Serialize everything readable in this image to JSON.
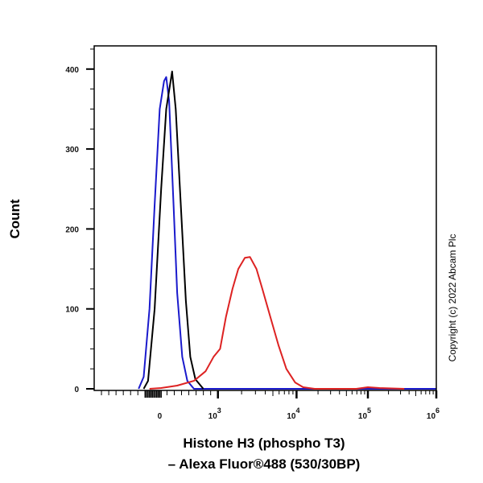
{
  "chart_data": {
    "type": "line",
    "title": "",
    "xlabel_line1": "Histone H3 (phospho T3)",
    "xlabel_line2": "– Alexa Fluor®488 (530/30BP)",
    "ylabel": "Count",
    "x_scale_note": "biexponential; x values given in display decades where 0→0, 10^3→0.8, 10^4→1.88, 10^5→2.86, 10^6→3.8",
    "xlim": [
      -0.9,
      3.8
    ],
    "ylim": [
      -2,
      429
    ],
    "yticks": [
      0,
      100,
      200,
      300,
      400
    ],
    "ytick_labels": [
      "0",
      "100",
      "200",
      "300",
      "400"
    ],
    "xticks": [
      {
        "pos": 0,
        "base": "0",
        "exp": ""
      },
      {
        "pos": 0.8,
        "base": "10",
        "exp": "3"
      },
      {
        "pos": 1.88,
        "base": "10",
        "exp": "4"
      },
      {
        "pos": 2.86,
        "base": "10",
        "exp": "5"
      },
      {
        "pos": 3.8,
        "base": "10",
        "exp": "6"
      }
    ],
    "grid": false,
    "series": [
      {
        "name": "blue",
        "color": "#1a1acc",
        "x": [
          -0.29,
          -0.22,
          -0.14,
          -0.07,
          0,
          0.06,
          0.09,
          0.13,
          0.19,
          0.24,
          0.31,
          0.38,
          0.47,
          3.8
        ],
        "y": [
          0,
          15,
          100,
          230,
          350,
          385,
          390,
          360,
          230,
          120,
          40,
          10,
          0,
          0
        ]
      },
      {
        "name": "black",
        "color": "#000000",
        "x": [
          -0.22,
          -0.16,
          -0.07,
          0.02,
          0.09,
          0.17,
          0.22,
          0.29,
          0.36,
          0.42,
          0.49,
          0.6
        ],
        "y": [
          0,
          10,
          100,
          250,
          350,
          397,
          350,
          230,
          110,
          40,
          12,
          0
        ]
      },
      {
        "name": "red",
        "color": "#dd2222",
        "x": [
          -0.14,
          0.02,
          0.24,
          0.47,
          0.63,
          0.74,
          0.83,
          0.91,
          1.0,
          1.08,
          1.17,
          1.24,
          1.33,
          1.41,
          1.52,
          1.63,
          1.74,
          1.86,
          1.97,
          2.13,
          2.7,
          2.86,
          3.02,
          3.36
        ],
        "y": [
          0,
          1,
          4,
          10,
          22,
          40,
          50,
          90,
          125,
          150,
          164,
          165,
          150,
          125,
          90,
          55,
          25,
          8,
          2,
          0,
          0,
          2,
          1,
          0
        ]
      }
    ]
  },
  "copyright": "Copyright (c) 2022 Abcam Plc"
}
